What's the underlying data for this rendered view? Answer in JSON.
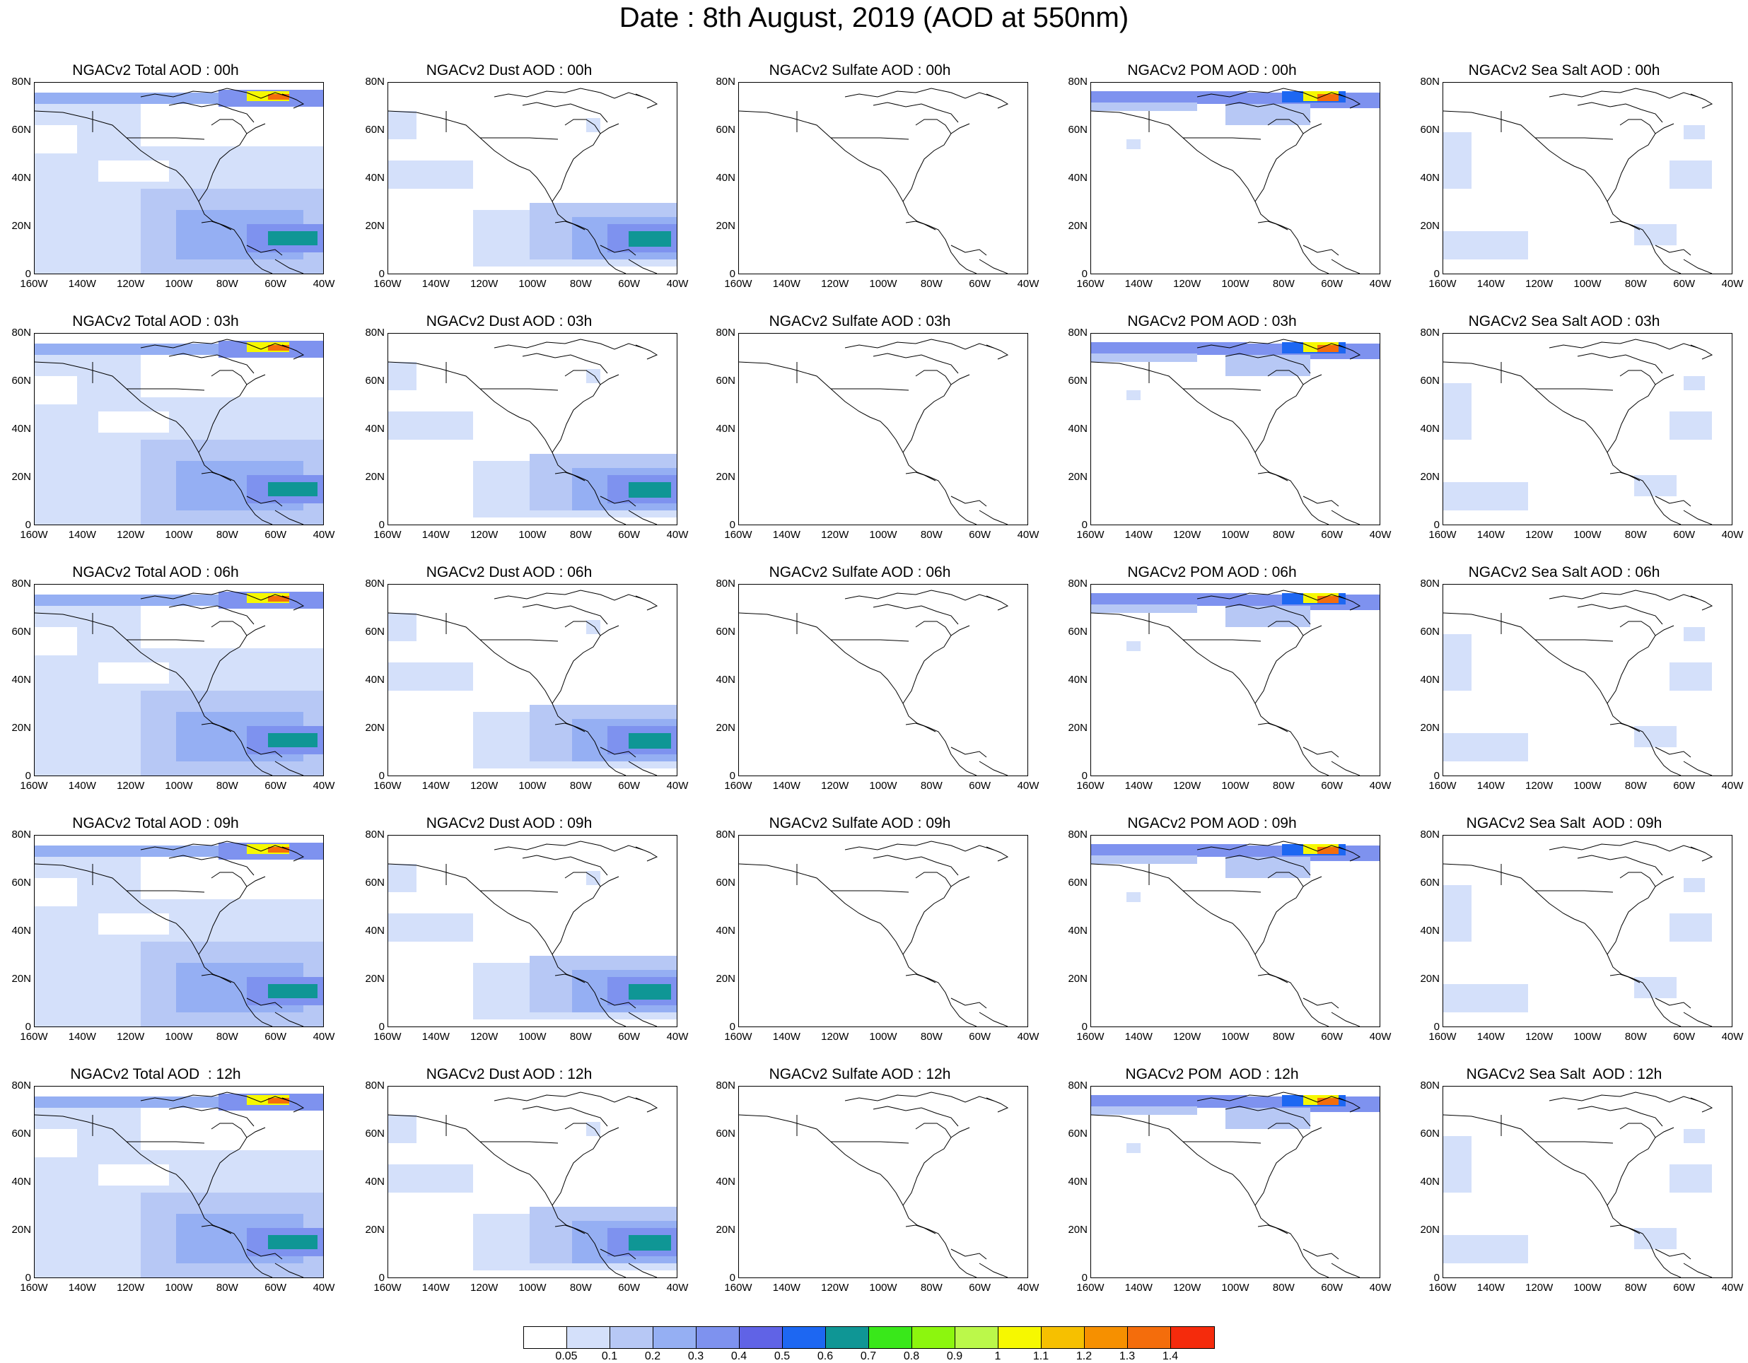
{
  "title": "Date : 8th August, 2019 (AOD at 550nm)",
  "lat_labels": [
    "80N",
    "60N",
    "40N",
    "20N",
    "0"
  ],
  "lon_labels": [
    "160W",
    "140W",
    "120W",
    "100W",
    "80W",
    "60W",
    "40W"
  ],
  "colorbar": {
    "colors": [
      "#ffffff",
      "#d4e0fa",
      "#b7c8f5",
      "#95aff3",
      "#7e92ef",
      "#6063e6",
      "#1d67f2",
      "#0f9695",
      "#39e81a",
      "#8cf60e",
      "#bbf84a",
      "#f6f800",
      "#f6c000",
      "#f69000",
      "#f46d0c",
      "#f52b0c"
    ],
    "labels": [
      "0.05",
      "0.1",
      "0.2",
      "0.3",
      "0.4",
      "0.5",
      "0.6",
      "0.7",
      "0.8",
      "0.9",
      "1",
      "1.1",
      "1.2",
      "1.3",
      "1.4"
    ]
  },
  "panels": [
    [
      "NGACv2 Total AOD : 00h",
      "NGACv2 Dust AOD : 00h",
      "NGACv2 Sulfate AOD : 00h",
      "NGACv2 POM AOD : 00h",
      "NGACv2 Sea Salt AOD : 00h"
    ],
    [
      "NGACv2 Total AOD : 03h",
      "NGACv2 Dust AOD : 03h",
      "NGACv2 Sulfate AOD : 03h",
      "NGACv2 POM AOD : 03h",
      "NGACv2 Sea Salt AOD : 03h"
    ],
    [
      "NGACv2 Total AOD : 06h",
      "NGACv2 Dust AOD : 06h",
      "NGACv2 Sulfate AOD : 06h",
      "NGACv2 POM AOD : 06h",
      "NGACv2 Sea Salt AOD : 06h"
    ],
    [
      "NGACv2 Total AOD : 09h",
      "NGACv2 Dust AOD : 09h",
      "NGACv2 Sulfate AOD : 09h",
      "NGACv2 POM AOD : 09h",
      "NGACv2 Sea Salt  AOD : 09h"
    ],
    [
      "NGACv2 Total AOD  : 12h",
      "NGACv2 Dust AOD : 12h",
      "NGACv2 Sulfate AOD : 12h",
      "NGACv2 POM  AOD : 12h",
      "NGACv2 Sea Salt  AOD : 12h"
    ]
  ]
}
